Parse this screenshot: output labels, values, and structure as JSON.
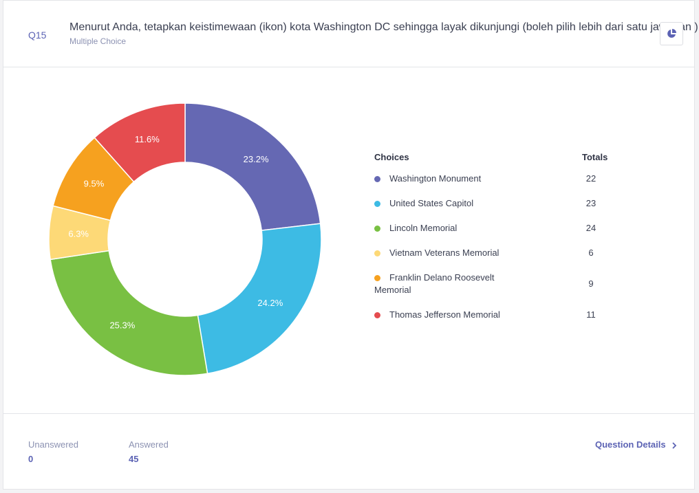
{
  "question": {
    "number": "Q15",
    "title": "Menurut Anda, tetapkan keistimewaan (ikon) kota Washington DC sehingga layak dikunjungi (boleh pilih lebih dari satu jawaban )",
    "type": "Multiple Choice",
    "chart_toggle_icon": "pie-chart-icon"
  },
  "legend": {
    "choices_header": "Choices",
    "totals_header": "Totals"
  },
  "chart_data": {
    "type": "pie",
    "donut": true,
    "categories": [
      "Washington Monument",
      "United States Capitol",
      "Lincoln Memorial",
      "Vietnam Veterans Memorial",
      "Franklin Delano Roosevelt Memorial",
      "Thomas Jefferson Memorial"
    ],
    "values": [
      22,
      23,
      24,
      6,
      9,
      11
    ],
    "percent_labels": [
      "23.2%",
      "24.2%",
      "25.3%",
      "6.3%",
      "9.5%",
      "11.6%"
    ],
    "colors": [
      "#6568b3",
      "#3dbbe4",
      "#79c043",
      "#fdd977",
      "#f6a11f",
      "#e54c4f"
    ]
  },
  "footer": {
    "unanswered_label": "Unanswered",
    "unanswered_value": "0",
    "answered_label": "Answered",
    "answered_value": "45",
    "details_link": "Question Details",
    "details_icon": "chevron-right-icon"
  }
}
